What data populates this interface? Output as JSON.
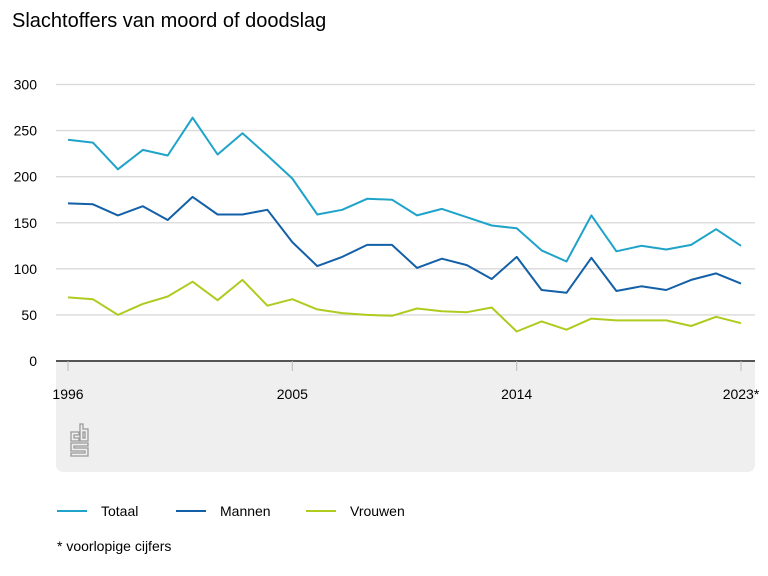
{
  "chart_data": {
    "type": "line",
    "title": "Slachtoffers van moord of doodslag",
    "xlabel": "",
    "ylabel": "",
    "x": [
      1996,
      1997,
      1998,
      1999,
      2000,
      2001,
      2002,
      2003,
      2004,
      2005,
      2006,
      2007,
      2008,
      2009,
      2010,
      2011,
      2012,
      2013,
      2014,
      2015,
      2016,
      2017,
      2018,
      2019,
      2020,
      2021,
      2022,
      2023
    ],
    "x_tick_labels": [
      {
        "x": 1996,
        "label": "1996"
      },
      {
        "x": 2005,
        "label": "2005"
      },
      {
        "x": 2014,
        "label": "2014"
      },
      {
        "x": 2023,
        "label": "2023*"
      }
    ],
    "y_ticks": [
      0,
      50,
      100,
      150,
      200,
      250,
      300
    ],
    "ylim": [
      0,
      300
    ],
    "grid": true,
    "legend_position": "bottom",
    "series": [
      {
        "name": "Totaal",
        "color": "#1fa3c9",
        "values": [
          240,
          237,
          208,
          229,
          223,
          264,
          224,
          247,
          223,
          198,
          159,
          164,
          176,
          175,
          158,
          165,
          156,
          147,
          144,
          120,
          108,
          158,
          119,
          125,
          121,
          126,
          143,
          125
        ]
      },
      {
        "name": "Mannen",
        "color": "#1360a8",
        "values": [
          171,
          170,
          158,
          168,
          153,
          178,
          159,
          159,
          164,
          129,
          103,
          113,
          126,
          126,
          101,
          111,
          104,
          89,
          113,
          77,
          74,
          112,
          76,
          81,
          77,
          88,
          95,
          84
        ]
      },
      {
        "name": "Vrouwen",
        "color": "#afcb1f",
        "values": [
          69,
          67,
          50,
          62,
          70,
          86,
          66,
          88,
          60,
          67,
          56,
          52,
          50,
          49,
          57,
          54,
          53,
          58,
          32,
          43,
          34,
          46,
          44,
          44,
          44,
          38,
          48,
          41
        ]
      }
    ],
    "footnote": "* voorlopige cijfers",
    "logo": "cbs"
  }
}
